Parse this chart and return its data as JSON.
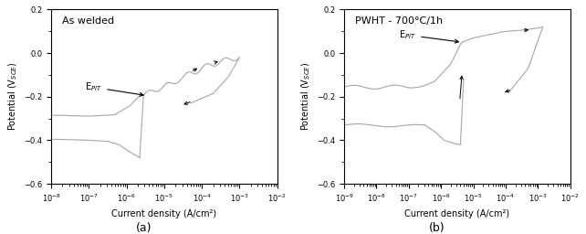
{
  "fig_width": 6.42,
  "fig_height": 2.56,
  "dpi": 100,
  "background_color": "#ffffff",
  "curve_color": "#aaaaaa",
  "text_color": "#000000",
  "subplot_a": {
    "title": "As welded",
    "xlabel": "Current density (A/cm²)",
    "ylabel": "Potential (V$_{SCE}$)",
    "xlim_log": [
      -8,
      -2
    ],
    "ylim": [
      -0.6,
      0.2
    ],
    "annotation": "E$_{PIT}$",
    "label": "(a)"
  },
  "subplot_b": {
    "title": "PWHT - 700°C/1h",
    "xlabel": "Current density (A/cm²)",
    "ylabel": "Potential (V$_{SCE}$)",
    "xlim_log": [
      -9,
      -2
    ],
    "ylim": [
      -0.6,
      0.2
    ],
    "annotation": "E$_{PIT}$",
    "label": "(b)"
  }
}
